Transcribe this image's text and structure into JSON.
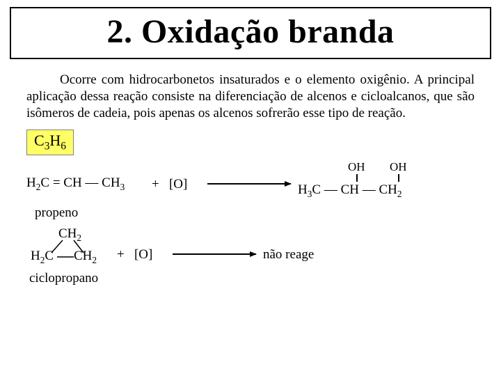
{
  "title": "2. Oxidação branda",
  "paragraph": "Ocorre com hidrocarbonetos insaturados e o elemento oxigênio. A principal aplicação dessa reação consiste na diferenciação de alcenos e cicloalcanos, que são isômeros de cadeia, pois apenas os alcenos sofrerão esse tipo de reação.",
  "formula_html": "C<sub>3</sub>H<sub>6</sub>",
  "reaction1": {
    "left_html": "H<sub>2</sub>C&nbsp;=&nbsp;CH&nbsp;—&nbsp;CH<sub>3</sub>",
    "reagent": "+   [O]",
    "oh": "OH",
    "product_html": "H<sub>3</sub>C&nbsp;—&nbsp;CH&nbsp;—&nbsp;CH<sub>2</sub>",
    "label": "propeno"
  },
  "reaction2": {
    "ch2_top_html": "CH<sub>2</sub>",
    "ch2_left_html": "H<sub>2</sub>C",
    "ch2_right_html": "CH<sub>2</sub>",
    "reagent": "+   [O]",
    "product": "não reage",
    "label": "ciclopropano"
  },
  "style": {
    "title_fontsize": 48,
    "body_fontsize": 19,
    "highlight_bg": "#ffff66",
    "border_color": "#000000",
    "background": "#ffffff"
  }
}
